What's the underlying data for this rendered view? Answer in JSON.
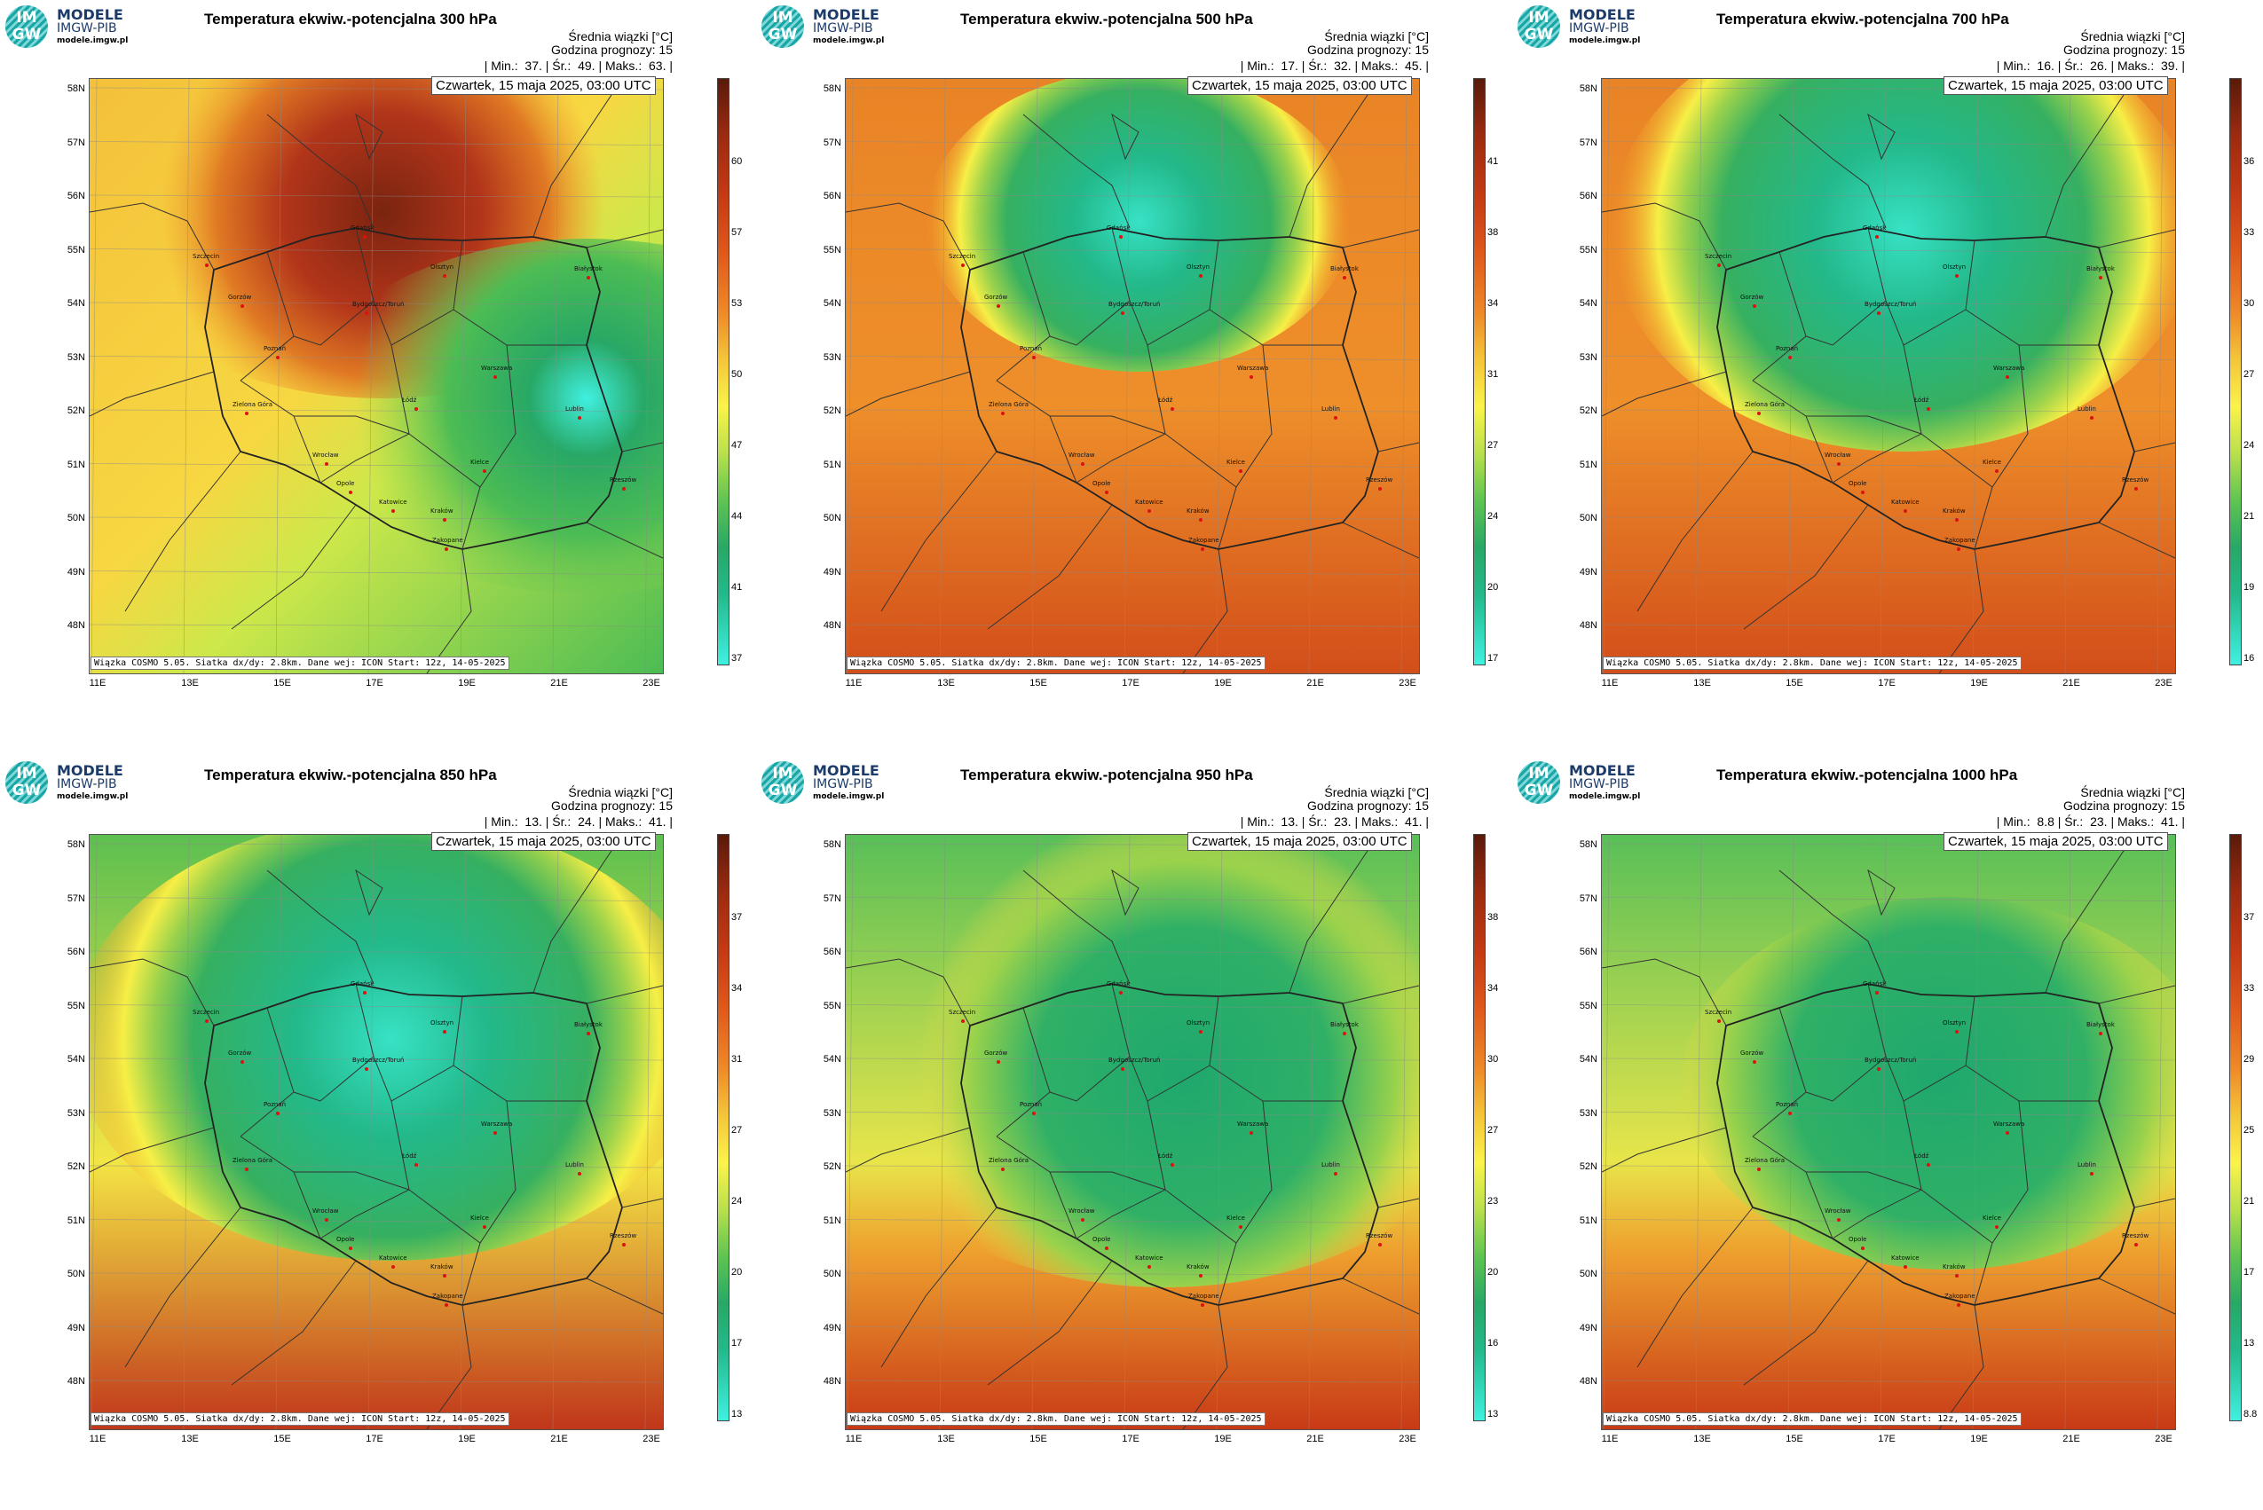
{
  "logo": {
    "line1": "MODELE",
    "line2": "IMGW-PIB",
    "url": "modele.imgw.pl",
    "mark_top": "IM",
    "mark_bottom": "GW"
  },
  "info_line1": "Średnia wiązki [°C]",
  "info_line2": "Godzina prognozy: 15",
  "date": "Czwartek, 15 maja 2025, 03:00 UTC",
  "footer": "Wiązka COSMO 5.05. Siatka dx/dy: 2.8km. Dane wej: ICON Start: 12z, 14-05-2025",
  "lat_labels": [
    "58N",
    "57N",
    "56N",
    "55N",
    "54N",
    "53N",
    "52N",
    "51N",
    "50N",
    "49N",
    "48N"
  ],
  "lon_labels": [
    "11E",
    "13E",
    "15E",
    "17E",
    "19E",
    "21E",
    "23E"
  ],
  "cities": [
    "Gdańsk",
    "Olsztyn",
    "Białystok",
    "Szczecin",
    "Bydgoszcz/Toruń",
    "Gorzów",
    "Poznań",
    "Warszawa",
    "Zielona Góra",
    "Łódź",
    "Lublin",
    "Wrocław",
    "Opole",
    "Kielce",
    "Rzeszów",
    "Katowice",
    "Kraków",
    "Zakopane"
  ],
  "panels": [
    {
      "title": "Temperatura ekwiw.-potencjalna 300 hPa",
      "min": "37.",
      "mean": "49.",
      "max": "63.",
      "scale": [
        "60",
        "57",
        "53",
        "50",
        "47",
        "44",
        "41",
        "37"
      ]
    },
    {
      "title": "Temperatura ekwiw.-potencjalna 500 hPa",
      "min": "17.",
      "mean": "32.",
      "max": "45.",
      "scale": [
        "41",
        "38",
        "34",
        "31",
        "27",
        "24",
        "20",
        "17"
      ]
    },
    {
      "title": "Temperatura ekwiw.-potencjalna 700 hPa",
      "min": "16.",
      "mean": "26.",
      "max": "39.",
      "scale": [
        "36",
        "33",
        "30",
        "27",
        "24",
        "21",
        "19",
        "16"
      ]
    },
    {
      "title": "Temperatura ekwiw.-potencjalna 850 hPa",
      "min": "13.",
      "mean": "24.",
      "max": "41.",
      "scale": [
        "37",
        "34",
        "31",
        "27",
        "24",
        "20",
        "17",
        "13"
      ]
    },
    {
      "title": "Temperatura ekwiw.-potencjalna 950 hPa",
      "min": "13.",
      "mean": "23.",
      "max": "41.",
      "scale": [
        "38",
        "34",
        "30",
        "27",
        "23",
        "20",
        "16",
        "13"
      ]
    },
    {
      "title": "Temperatura ekwiw.-potencjalna 1000 hPa",
      "min": "8.8",
      "mean": "23.",
      "max": "41.",
      "scale": [
        "37",
        "33",
        "29",
        "25",
        "21",
        "17",
        "13",
        "8.8"
      ]
    }
  ],
  "stats_labels": {
    "min": "Min.:",
    "mean": "Śr.:",
    "max": "Maks.:"
  }
}
